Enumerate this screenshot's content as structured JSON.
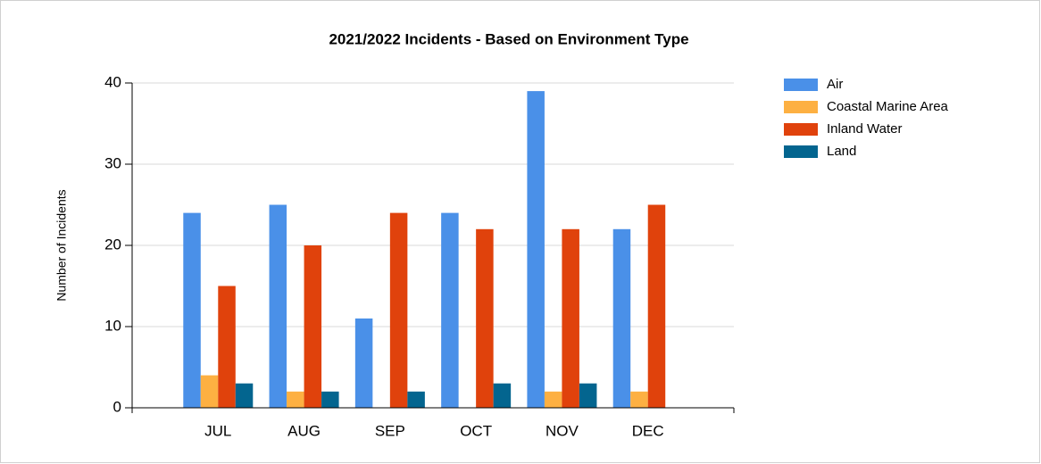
{
  "chart_data": {
    "type": "bar",
    "title": "2021/2022 Incidents - Based on Environment Type",
    "y_label": "Number of Incidents",
    "categories": [
      "JUL",
      "AUG",
      "SEP",
      "OCT",
      "NOV",
      "DEC"
    ],
    "series": [
      {
        "name": "Air",
        "color": "#4a90e8",
        "values": [
          24,
          25,
          11,
          24,
          39,
          22
        ]
      },
      {
        "name": "Coastal Marine Area",
        "color": "#fdb042",
        "values": [
          4,
          2,
          0,
          0,
          2,
          2
        ]
      },
      {
        "name": "Inland Water",
        "color": "#e0420c",
        "values": [
          15,
          20,
          24,
          22,
          22,
          25
        ]
      },
      {
        "name": "Land",
        "color": "#03658f",
        "values": [
          3,
          2,
          2,
          3,
          3,
          0
        ]
      }
    ],
    "ylim": [
      0,
      40
    ],
    "yticks": [
      0,
      10,
      20,
      30,
      40
    ],
    "grid": true,
    "legend": "right"
  }
}
